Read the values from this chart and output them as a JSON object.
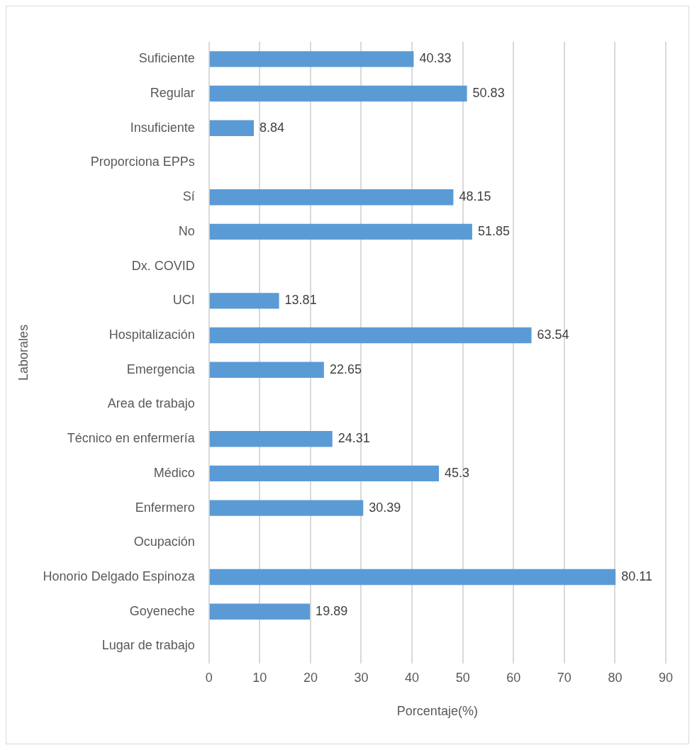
{
  "chart_data": {
    "type": "bar",
    "orientation": "horizontal",
    "xlabel": "Porcentaje(%)",
    "ylabel": "Laborales",
    "categories": [
      "Suficiente",
      "Regular",
      "Insuficiente",
      "Proporciona EPPs",
      "Sí",
      "No",
      "Dx. COVID",
      "UCI",
      "Hospitalización",
      "Emergencia",
      "Area de trabajo",
      "Técnico en enfermería",
      "Médico",
      "Enfermero",
      "Ocupación",
      "Honorio Delgado Espinoza",
      "Goyeneche",
      "Lugar de trabajo"
    ],
    "values": [
      40.33,
      50.83,
      8.84,
      null,
      48.15,
      51.85,
      null,
      13.81,
      63.54,
      22.65,
      null,
      24.31,
      45.3,
      30.39,
      null,
      80.11,
      19.89,
      null
    ],
    "color": "#5b9bd5",
    "xlim": [
      0,
      90
    ],
    "xticks": [
      0,
      10,
      20,
      30,
      40,
      50,
      60,
      70,
      80,
      90
    ],
    "grid": "x",
    "data_labels": true,
    "legend": false
  }
}
